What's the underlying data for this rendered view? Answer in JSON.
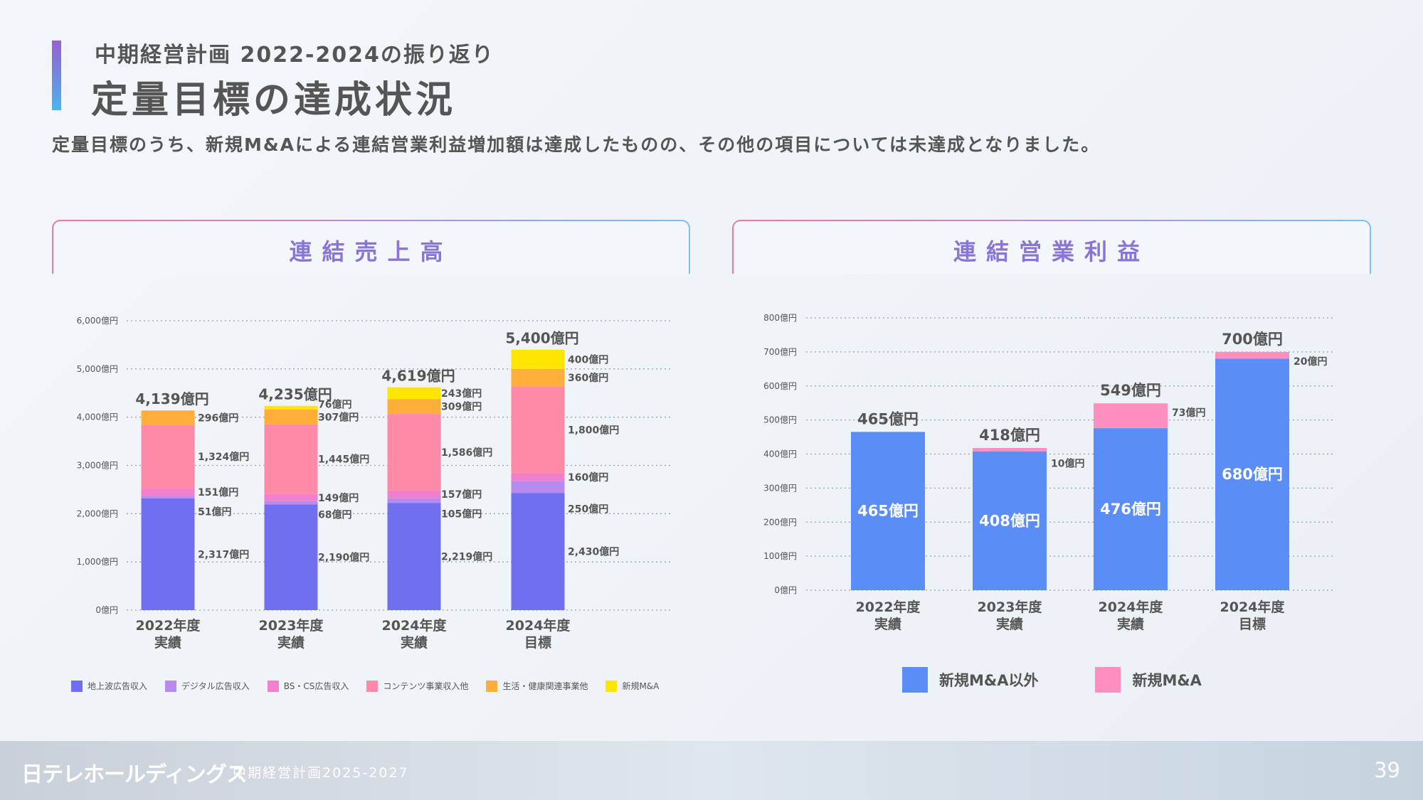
{
  "header": {
    "subtitle": "中期経営計画 2022-2024の振り返り",
    "title": "定量目標の達成状況",
    "lead": "定量目標のうち、新規M&Aによる連結営業利益増加額は達成したものの、その他の項目については未達成となりました。"
  },
  "panels": {
    "left_title": "連結売上高",
    "right_title": "連結営業利益"
  },
  "footer": {
    "logo": "日テレホールディングス",
    "plan": "中期経営計画2025-2027",
    "page": "39"
  },
  "colors": {
    "terrestrial": "#6f6ff0",
    "digital": "#b78af0",
    "bs_cs": "#f27fcc",
    "contents": "#ff8aa8",
    "life": "#ffae3a",
    "new_ma": "#ffe600",
    "base": "#5a8df6",
    "ma": "#ff8fbf"
  },
  "chart_data": [
    {
      "type": "bar",
      "stacked": true,
      "title": "連結売上高",
      "categories": [
        [
          "2022年度",
          "実績"
        ],
        [
          "2023年度",
          "実績"
        ],
        [
          "2024年度",
          "実績"
        ],
        [
          "2024年度",
          "目標"
        ]
      ],
      "y_ticks": [
        "0億円",
        "1,000億円",
        "2,000億円",
        "3,000億円",
        "4,000億円",
        "5,000億円",
        "6,000億円"
      ],
      "ylim": [
        0,
        6000
      ],
      "grid": true,
      "legend_position": "bottom",
      "series": [
        {
          "name": "地上波広告収入",
          "color_key": "terrestrial",
          "values": [
            2317,
            2190,
            2219,
            2430
          ],
          "labels": [
            "2,317億円",
            "2,190億円",
            "2,219億円",
            "2,430億円"
          ]
        },
        {
          "name": "デジタル広告収入",
          "color_key": "digital",
          "values": [
            51,
            68,
            105,
            250
          ],
          "labels": [
            "51億円",
            "68億円",
            "105億円",
            "250億円"
          ]
        },
        {
          "name": "BS・CS広告収入",
          "color_key": "bs_cs",
          "values": [
            151,
            149,
            157,
            160
          ],
          "labels": [
            "151億円",
            "149億円",
            "157億円",
            "160億円"
          ]
        },
        {
          "name": "コンテンツ事業収入他",
          "color_key": "contents",
          "values": [
            1324,
            1445,
            1586,
            1800
          ],
          "labels": [
            "1,324億円",
            "1,445億円",
            "1,586億円",
            "1,800億円"
          ]
        },
        {
          "name": "生活・健康関連事業他",
          "color_key": "life",
          "values": [
            296,
            307,
            309,
            360
          ],
          "labels": [
            "296億円",
            "307億円",
            "309億円",
            "360億円"
          ]
        },
        {
          "name": "新規M&A",
          "color_key": "new_ma",
          "values": [
            0,
            76,
            243,
            400
          ],
          "labels": [
            "",
            "76億円",
            "243億円",
            "400億円"
          ]
        }
      ],
      "totals": [
        4139,
        4235,
        4619,
        5400
      ],
      "total_labels": [
        "4,139億円",
        "4,235億円",
        "4,619億円",
        "5,400億円"
      ]
    },
    {
      "type": "bar",
      "stacked": true,
      "title": "連結営業利益",
      "categories": [
        [
          "2022年度",
          "実績"
        ],
        [
          "2023年度",
          "実績"
        ],
        [
          "2024年度",
          "実績"
        ],
        [
          "2024年度",
          "目標"
        ]
      ],
      "y_ticks": [
        "0億円",
        "100億円",
        "200億円",
        "300億円",
        "400億円",
        "500億円",
        "600億円",
        "700億円",
        "800億円"
      ],
      "ylim": [
        0,
        800
      ],
      "grid": true,
      "legend_position": "bottom",
      "series": [
        {
          "name": "新規M&A以外",
          "color_key": "base",
          "values": [
            465,
            408,
            476,
            680
          ],
          "labels": [
            "465億円",
            "408億円",
            "476億円",
            "680億円"
          ]
        },
        {
          "name": "新規M&A",
          "color_key": "ma",
          "values": [
            0,
            10,
            73,
            20
          ],
          "labels": [
            "",
            "10億円",
            "73億円",
            "20億円"
          ]
        }
      ],
      "totals": [
        465,
        418,
        549,
        700
      ],
      "total_labels": [
        "465億円",
        "418億円",
        "549億円",
        "700億円"
      ]
    }
  ]
}
